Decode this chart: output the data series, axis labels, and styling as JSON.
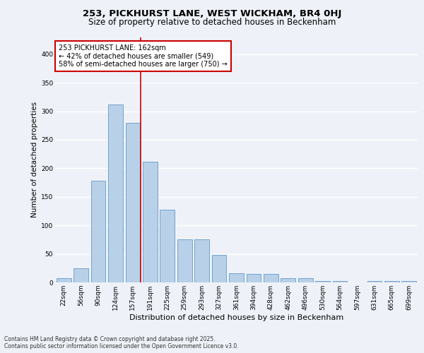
{
  "title1": "253, PICKHURST LANE, WEST WICKHAM, BR4 0HJ",
  "title2": "Size of property relative to detached houses in Beckenham",
  "xlabel": "Distribution of detached houses by size in Beckenham",
  "ylabel": "Number of detached properties",
  "categories": [
    "22sqm",
    "56sqm",
    "90sqm",
    "124sqm",
    "157sqm",
    "191sqm",
    "225sqm",
    "259sqm",
    "293sqm",
    "327sqm",
    "361sqm",
    "394sqm",
    "428sqm",
    "462sqm",
    "496sqm",
    "530sqm",
    "564sqm",
    "597sqm",
    "631sqm",
    "665sqm",
    "699sqm"
  ],
  "values": [
    7,
    25,
    178,
    312,
    280,
    212,
    127,
    76,
    76,
    48,
    16,
    15,
    15,
    7,
    8,
    3,
    2,
    0,
    2,
    3,
    3
  ],
  "bar_color": "#b8d0e8",
  "bar_edge_color": "#6699cc",
  "bar_width": 0.85,
  "vline_x": 4.45,
  "vline_color": "#cc0000",
  "annotation_text": "253 PICKHURST LANE: 162sqm\n← 42% of detached houses are smaller (549)\n58% of semi-detached houses are larger (750) →",
  "annotation_box_color": "#ffffff",
  "annotation_box_edge": "#cc0000",
  "ylim": [
    0,
    430
  ],
  "yticks": [
    0,
    50,
    100,
    150,
    200,
    250,
    300,
    350,
    400
  ],
  "bg_color": "#eef2f8",
  "plot_bg_color": "#eef2f8",
  "grid_color": "#ffffff",
  "footnote": "Contains HM Land Registry data © Crown copyright and database right 2025.\nContains public sector information licensed under the Open Government Licence v3.0.",
  "title1_fontsize": 9.5,
  "title2_fontsize": 8.5,
  "ylabel_fontsize": 7.5,
  "xlabel_fontsize": 8.0,
  "tick_fontsize": 6.5,
  "annot_fontsize": 7.0
}
